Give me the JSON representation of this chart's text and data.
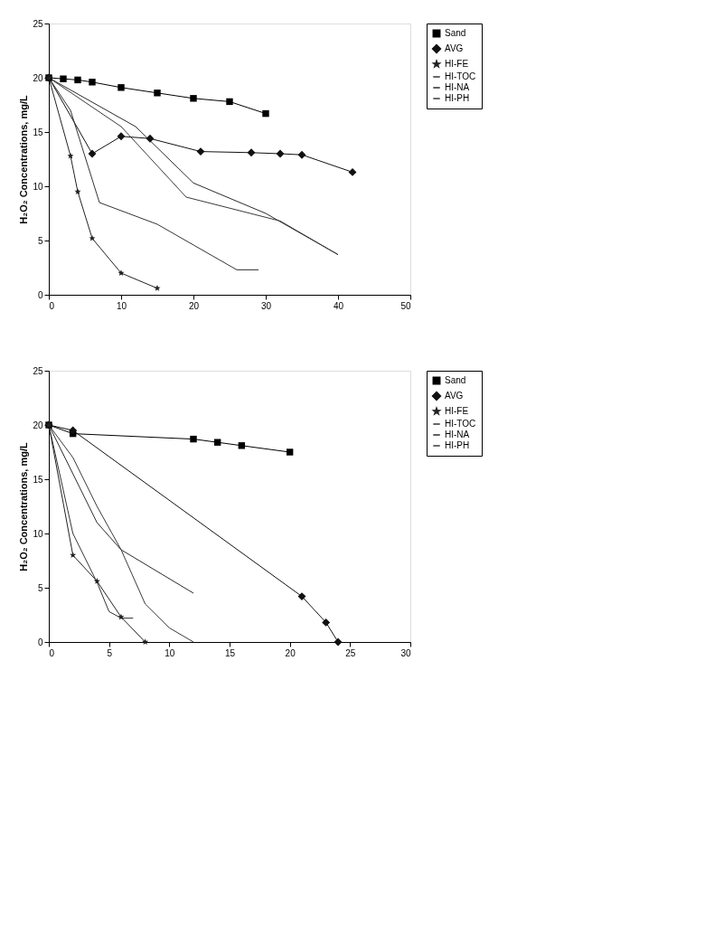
{
  "chart_data": [
    {
      "type": "line",
      "ylabel": "H₂O₂ Concentrations, mg/L",
      "xlim": [
        0,
        50
      ],
      "ylim": [
        0,
        25
      ],
      "xticks": [
        0,
        10,
        20,
        30,
        40,
        50
      ],
      "yticks": [
        0,
        5,
        10,
        15,
        20,
        25
      ],
      "grid": false,
      "legend": "right",
      "series": [
        {
          "name": "Sand",
          "color": "#000000",
          "marker": "square",
          "x": [
            0,
            2,
            4,
            6,
            10,
            15,
            20,
            25,
            30
          ],
          "values": [
            20,
            19.9,
            19.8,
            19.6,
            19.1,
            18.6,
            18.1,
            17.8,
            16.7
          ]
        },
        {
          "name": "AVG",
          "color": "#111111",
          "marker": "diamond",
          "x": [
            0,
            6,
            10,
            14,
            21,
            28,
            32,
            35,
            42
          ],
          "values": [
            20,
            13,
            14.6,
            14.4,
            13.2,
            13.1,
            13,
            12.9,
            11.3
          ]
        },
        {
          "name": "HI-FE",
          "color": "#222222",
          "marker": "star",
          "x": [
            0,
            3,
            4,
            6,
            10,
            15
          ],
          "values": [
            20,
            12.8,
            9.5,
            5.2,
            2,
            0.6
          ]
        },
        {
          "name": "HI-TOC",
          "color": "#333333",
          "marker": "none",
          "x": [
            0,
            3,
            7,
            15,
            26,
            29
          ],
          "values": [
            20,
            17,
            8.5,
            6.5,
            2.3,
            2.3
          ]
        },
        {
          "name": "HI-NA",
          "color": "#2a2a2a",
          "marker": "none",
          "x": [
            0,
            12,
            20,
            30,
            40
          ],
          "values": [
            20,
            15.5,
            10.3,
            7.5,
            3.7
          ]
        },
        {
          "name": "HI-PH",
          "color": "#3a3a3a",
          "marker": "none",
          "x": [
            0,
            10,
            19,
            32,
            40
          ],
          "values": [
            20,
            15.5,
            9,
            6.8,
            3.7
          ]
        }
      ]
    },
    {
      "type": "line",
      "ylabel": "H₂O₂ Concentrations, mg/L",
      "xlim": [
        0,
        30
      ],
      "ylim": [
        0,
        25
      ],
      "xticks": [
        0,
        5,
        10,
        15,
        20,
        25,
        30
      ],
      "yticks": [
        0,
        5,
        10,
        15,
        20,
        25
      ],
      "grid": false,
      "legend": "right",
      "series": [
        {
          "name": "Sand",
          "color": "#000000",
          "marker": "square",
          "x": [
            0,
            2,
            12,
            14,
            16,
            20
          ],
          "values": [
            20,
            19.2,
            18.7,
            18.4,
            18.1,
            17.5
          ]
        },
        {
          "name": "AVG",
          "color": "#111111",
          "marker": "diamond",
          "x": [
            0,
            2,
            21,
            23,
            24
          ],
          "values": [
            20,
            19.5,
            4.2,
            1.8,
            0
          ]
        },
        {
          "name": "HI-FE",
          "color": "#222222",
          "marker": "star",
          "x": [
            0,
            2,
            4,
            6,
            8
          ],
          "values": [
            20,
            8,
            5.6,
            2.3,
            0
          ]
        },
        {
          "name": "HI-TOC",
          "color": "#333333",
          "marker": "none",
          "x": [
            0,
            2,
            4,
            5,
            6,
            7
          ],
          "values": [
            20,
            10,
            5.5,
            2.8,
            2.2,
            2.2
          ]
        },
        {
          "name": "HI-NA",
          "color": "#2a2a2a",
          "marker": "none",
          "x": [
            0,
            4,
            6,
            12
          ],
          "values": [
            20,
            11,
            8.5,
            4.5
          ]
        },
        {
          "name": "HI-PH",
          "color": "#3a3a3a",
          "marker": "none",
          "x": [
            0,
            2,
            4,
            6,
            8,
            10,
            12
          ],
          "values": [
            20,
            17,
            12.5,
            8.5,
            3.5,
            1.3,
            0
          ]
        }
      ]
    }
  ]
}
